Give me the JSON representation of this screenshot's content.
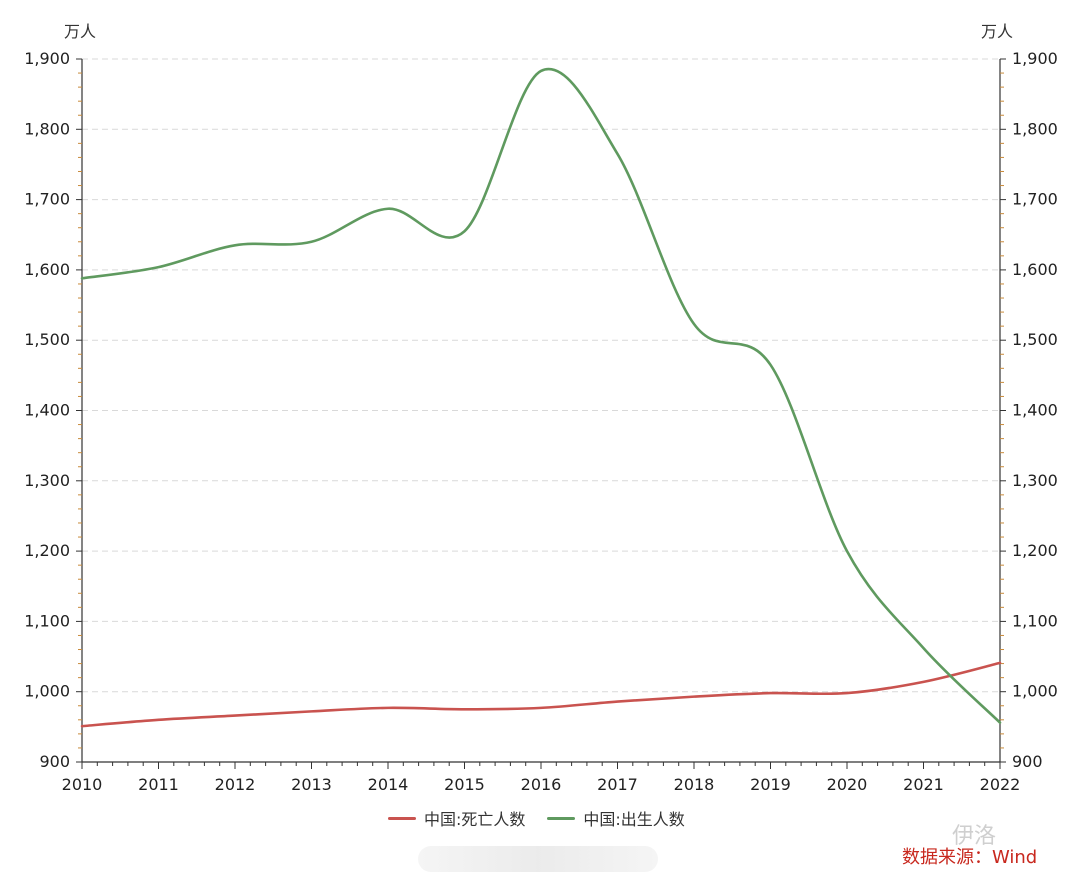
{
  "axis_unit_left": "万人",
  "axis_unit_right": "万人",
  "source": "数据来源：Wind",
  "watermark": "伊洛",
  "colors": {
    "deaths": "#c9534f",
    "births": "#5f9a5f",
    "grid": "#d9d9d9",
    "axis": "#333333",
    "tick": "#c88a3a"
  },
  "chart_data": {
    "type": "line",
    "x": [
      2010,
      2011,
      2012,
      2013,
      2014,
      2015,
      2016,
      2017,
      2018,
      2019,
      2020,
      2021,
      2022
    ],
    "x_tick_labels": [
      "2010",
      "2011",
      "2012",
      "2013",
      "2014",
      "2015",
      "2016",
      "2017",
      "2018",
      "2019",
      "2020",
      "2021",
      "2022"
    ],
    "ylim": [
      900,
      1900
    ],
    "y_ticks": [
      900,
      1000,
      1100,
      1200,
      1300,
      1400,
      1500,
      1600,
      1700,
      1800,
      1900
    ],
    "y_tick_labels": [
      "900",
      "1,000",
      "1,100",
      "1,200",
      "1,300",
      "1,400",
      "1,500",
      "1,600",
      "1,700",
      "1,800",
      "1,900"
    ],
    "series": [
      {
        "name": "中国:死亡人数",
        "values": [
          951,
          960,
          966,
          972,
          977,
          975,
          977,
          986,
          993,
          998,
          998,
          1014,
          1041
        ]
      },
      {
        "name": "中国:出生人数",
        "values": [
          1588,
          1604,
          1635,
          1640,
          1687,
          1655,
          1883,
          1765,
          1523,
          1465,
          1200,
          1062,
          956
        ]
      }
    ],
    "grid": true,
    "legend_position": "bottom"
  }
}
